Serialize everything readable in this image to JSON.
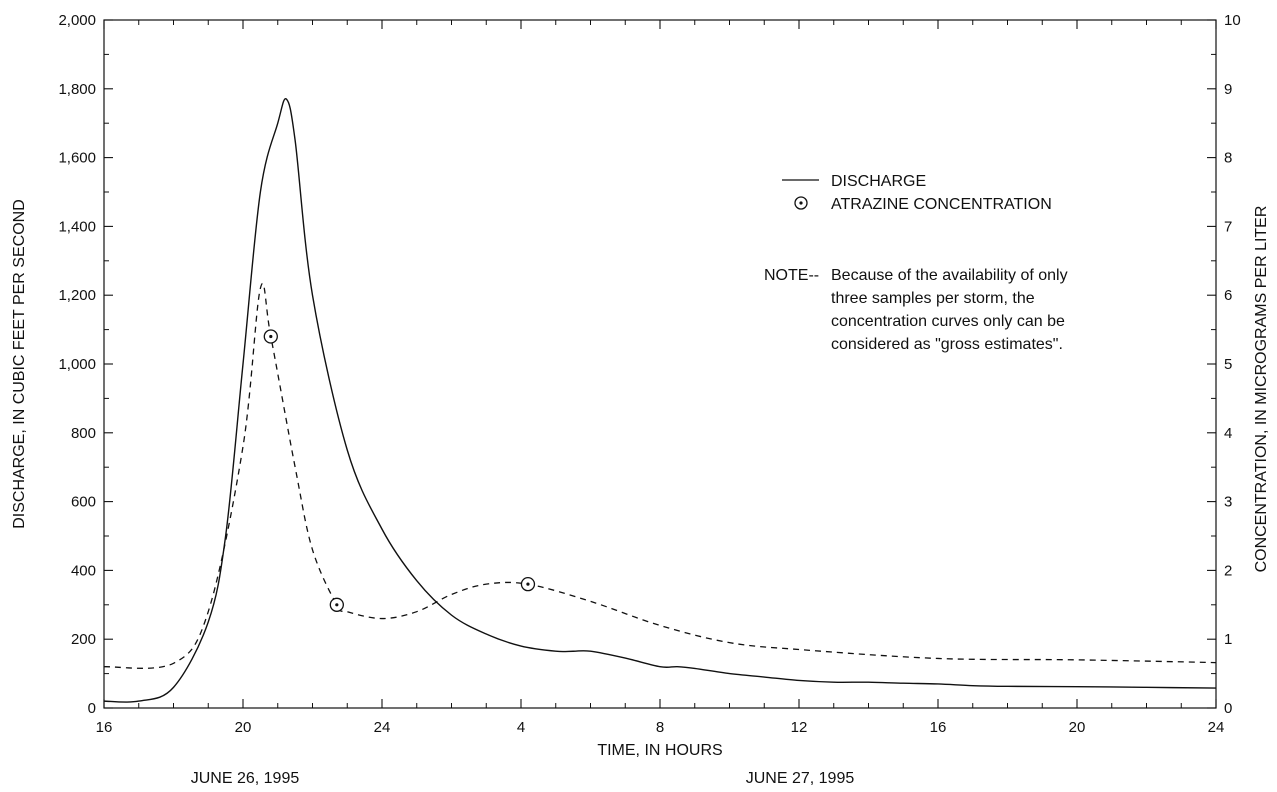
{
  "chart_data": {
    "type": "line",
    "x_unit": "hours",
    "xlabel": "TIME, IN HOURS",
    "ylabel": "DISCHARGE, IN CUBIC FEET PER SECOND",
    "y2label": "CONCENTRATION, IN MICROGRAMS PER LITER",
    "xlim": [
      "June 26, 1995 16:00",
      "June 27, 1995 24:00"
    ],
    "ylim": [
      0,
      2000
    ],
    "y2lim": [
      0,
      10
    ],
    "x_tick_labels": [
      "16",
      "20",
      "24",
      "4",
      "8",
      "12",
      "16",
      "20",
      "24"
    ],
    "y_tick_labels": [
      "0",
      "200",
      "400",
      "600",
      "800",
      "1,000",
      "1,200",
      "1,400",
      "1,600",
      "1,800",
      "2,000"
    ],
    "y2_tick_labels": [
      "0",
      "1",
      "2",
      "3",
      "4",
      "5",
      "6",
      "7",
      "8",
      "9",
      "10"
    ],
    "date_labels": [
      "JUNE 26, 1995",
      "JUNE 27, 1995"
    ],
    "legend": {
      "placement": "upper-right",
      "entries": [
        "DISCHARGE",
        "ATRAZINE CONCENTRATION"
      ]
    },
    "note": {
      "heading": "NOTE--",
      "lines": [
        "Because of the availability of only",
        "three samples per storm, the",
        "concentration curves only can be",
        "considered as \"gross estimates\"."
      ]
    },
    "series": [
      {
        "name": "DISCHARGE",
        "axis": "left",
        "style": "solid",
        "x": [
          "June 26, 1995 16:00",
          "June 26, 1995 17:00",
          "June 26, 1995 18:00",
          "June 26, 1995 19:00",
          "June 26, 1995 19:30",
          "June 26, 1995 20:00",
          "June 26, 1995 20:30",
          "June 26, 1995 21:00",
          "June 26, 1995 21:15",
          "June 26, 1995 21:30",
          "June 26, 1995 22:00",
          "June 26, 1995 23:00",
          "June 27, 1995 00:00",
          "June 27, 1995 01:00",
          "June 27, 1995 02:00",
          "June 27, 1995 03:00",
          "June 27, 1995 04:00",
          "June 27, 1995 05:00",
          "June 27, 1995 05:30",
          "June 27, 1995 06:00",
          "June 27, 1995 07:00",
          "June 27, 1995 08:00",
          "June 27, 1995 08:30",
          "June 27, 1995 09:00",
          "June 27, 1995 10:00",
          "June 27, 1995 11:00",
          "June 27, 1995 12:00",
          "June 27, 1995 13:00",
          "June 27, 1995 14:00",
          "June 27, 1995 15:00",
          "June 27, 1995 16:00",
          "June 27, 1995 17:00",
          "June 27, 1995 18:00",
          "June 27, 1995 20:00",
          "June 27, 1995 22:00",
          "June 27, 1995 24:00"
        ],
        "y": [
          20,
          20,
          60,
          250,
          500,
          1000,
          1500,
          1700,
          1770,
          1650,
          1200,
          750,
          520,
          370,
          270,
          215,
          180,
          165,
          165,
          165,
          145,
          120,
          120,
          115,
          100,
          90,
          80,
          75,
          75,
          72,
          70,
          65,
          63,
          62,
          60,
          58
        ]
      },
      {
        "name": "ATRAZINE CONCENTRATION",
        "axis": "right",
        "style": "dashed",
        "x": [
          "June 26, 1995 16:00",
          "June 26, 1995 18:00",
          "June 26, 1995 19:00",
          "June 26, 1995 20:00",
          "June 26, 1995 20:30",
          "June 26, 1995 20:48",
          "June 26, 1995 21:30",
          "June 26, 1995 22:00",
          "June 26, 1995 22:42",
          "June 26, 1995 23:00",
          "June 27, 1995 00:00",
          "June 27, 1995 01:00",
          "June 27, 1995 02:00",
          "June 27, 1995 03:00",
          "June 27, 1995 04:12",
          "June 27, 1995 06:00",
          "June 27, 1995 08:00",
          "June 27, 1995 10:00",
          "June 27, 1995 12:00",
          "June 27, 1995 16:00",
          "June 27, 1995 20:00",
          "June 27, 1995 24:00"
        ],
        "y": [
          0.6,
          0.65,
          1.4,
          3.8,
          6.1,
          5.4,
          3.5,
          2.3,
          1.5,
          1.4,
          1.3,
          1.4,
          1.65,
          1.8,
          1.8,
          1.55,
          1.2,
          0.95,
          0.85,
          0.72,
          0.7,
          0.66
        ]
      }
    ],
    "samples": {
      "name": "ATRAZINE CONCENTRATION",
      "x": [
        "June 26, 1995 20:48",
        "June 26, 1995 22:42",
        "June 27, 1995 04:12"
      ],
      "y": [
        5.4,
        1.5,
        1.8
      ]
    }
  }
}
